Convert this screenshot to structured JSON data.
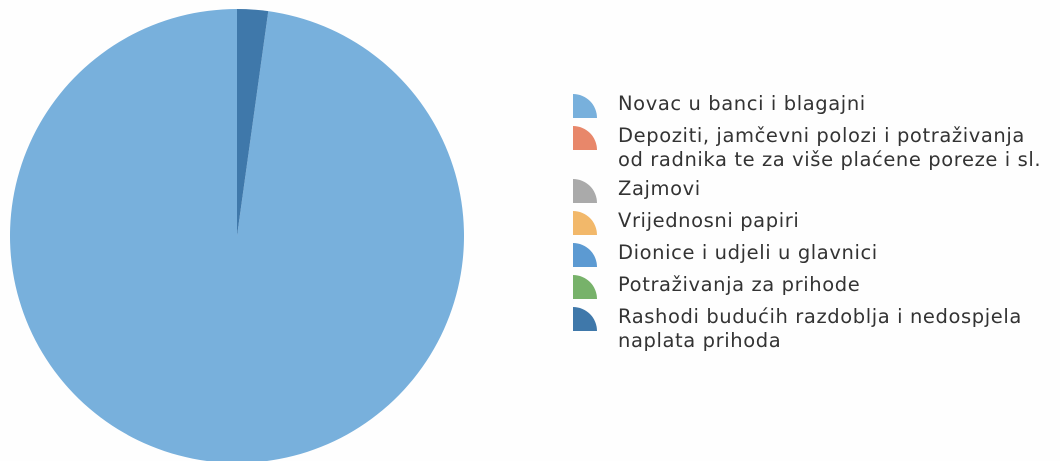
{
  "chart_data": {
    "type": "pie",
    "title": "",
    "series": [
      {
        "name": "Novac u banci i blagajni",
        "value": 97.8,
        "color": "#78b0dc"
      },
      {
        "name": "Depoziti, jamčevni polozi i potraživanja\nod radnika te za više plaćene poreze i sl.",
        "value": 0.0,
        "color": "#e8876a"
      },
      {
        "name": "Zajmovi",
        "value": 0.0,
        "color": "#aaaaaa"
      },
      {
        "name": "Vrijednosni papiri",
        "value": 0.0,
        "color": "#f2b86a"
      },
      {
        "name": "Dionice i udjeli u glavnici",
        "value": 0.0,
        "color": "#5c9ad2"
      },
      {
        "name": "Potraživanja za prihode",
        "value": 0.0,
        "color": "#77b26a"
      },
      {
        "name": "Rashodi budućih razdoblja i nedospjela\nnaplata prihoda",
        "value": 2.2,
        "color": "#3f78aa"
      }
    ],
    "legend": "right"
  }
}
